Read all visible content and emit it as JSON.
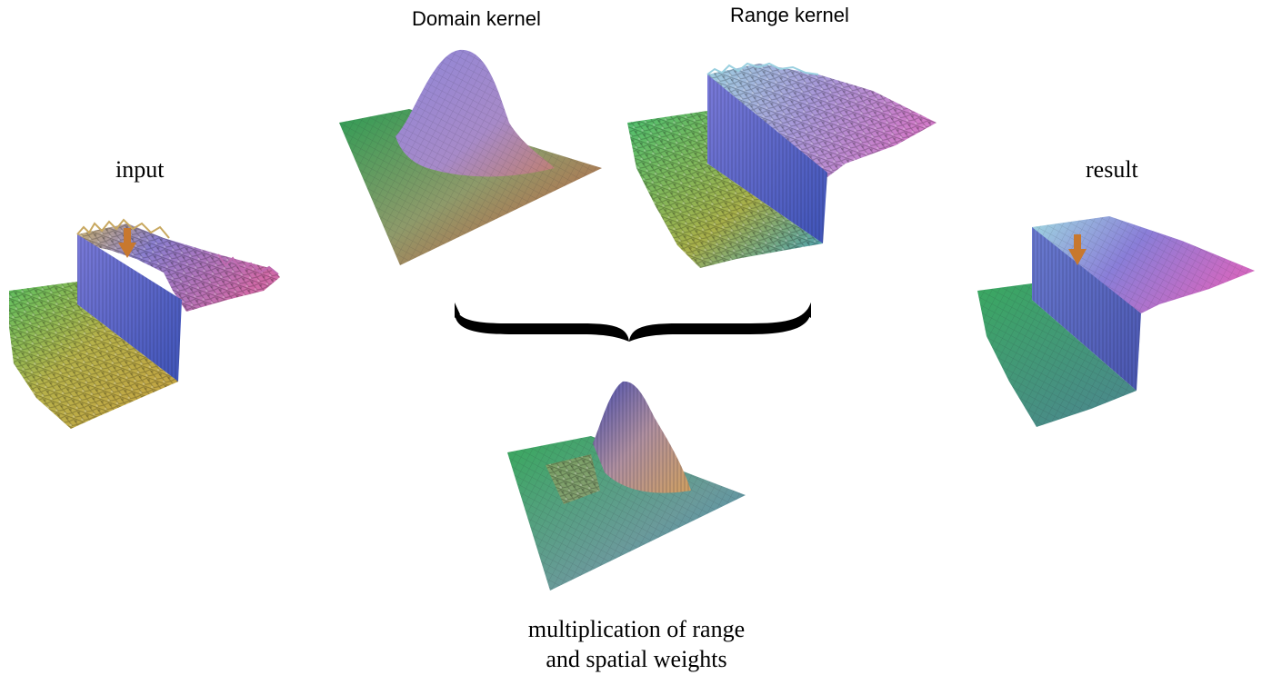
{
  "labels": {
    "input": "input",
    "domain_kernel": "Domain kernel",
    "range_kernel": "Range kernel",
    "result": "result",
    "multiplication_line1": "multiplication of range",
    "multiplication_line2": "and spatial weights"
  },
  "colors": {
    "green": "#4fae5a",
    "yellow": "#c8b04a",
    "blue": "#6a6fc8",
    "magenta": "#c86ab8",
    "red": "#c95a3c",
    "arrow": "#c8782e",
    "brace": "#000000"
  },
  "icons": [
    "down-arrow-icon",
    "curly-brace-icon"
  ]
}
